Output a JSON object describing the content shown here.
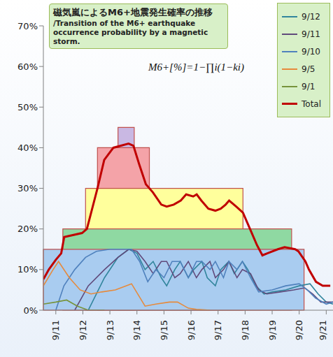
{
  "chart_data": {
    "type": "line",
    "title": "磁気嵐によるM6+地震発生確率の推移",
    "subtitle": "/Transition of the M6+ earthquake occurrence probability by a magnetic storm.",
    "annotations": [
      "M6+[%]=1−∏i(1−ki)"
    ],
    "xlim": [
      10.54,
      21.25
    ],
    "xticks": [
      {
        "value": 11,
        "label": "9/11"
      },
      {
        "value": 12,
        "label": "9/12"
      },
      {
        "value": 13,
        "label": "9/13"
      },
      {
        "value": 14,
        "label": "9/14"
      },
      {
        "value": 15,
        "label": "9/15"
      },
      {
        "value": 16,
        "label": "9/16"
      },
      {
        "value": 17,
        "label": "9/17"
      },
      {
        "value": 18,
        "label": "9/18"
      },
      {
        "value": 19,
        "label": "9/19"
      },
      {
        "value": 20,
        "label": "9/20"
      },
      {
        "value": 21,
        "label": "9/21"
      }
    ],
    "ylim": [
      0,
      70
    ],
    "yticks": [
      {
        "value": 0,
        "label": "0%"
      },
      {
        "value": 10,
        "label": "10%"
      },
      {
        "value": 20,
        "label": "20%"
      },
      {
        "value": 30,
        "label": "30%"
      },
      {
        "value": 40,
        "label": "40%"
      },
      {
        "value": 50,
        "label": "50%"
      },
      {
        "value": 60,
        "label": "60%"
      },
      {
        "value": 70,
        "label": "70%"
      }
    ],
    "grid": false,
    "legend": "top-right",
    "bands": [
      {
        "x": [
          13.3,
          13.9
        ],
        "value": 45,
        "color": "#c9b8e3"
      },
      {
        "x": [
          12.54,
          14.46
        ],
        "value": 40,
        "color": "#f4a3a8"
      },
      {
        "x": [
          12.1,
          17.92
        ],
        "value": 30,
        "color": "#ffff9c"
      },
      {
        "x": [
          11.26,
          19.72
        ],
        "value": 20,
        "color": "#8fd9a2"
      },
      {
        "x": [
          10.54,
          20.18
        ],
        "value": 15,
        "color": "#a9ccf0"
      }
    ],
    "series": [
      {
        "name": "9/12",
        "color": "#31859c",
        "x": [
          12.2,
          12.8,
          13.3,
          13.7,
          14.0,
          14.3,
          14.6,
          14.9,
          15.1,
          15.4,
          15.6,
          15.9,
          16.1,
          16.4,
          16.6,
          16.9,
          17.1,
          17.4,
          17.6,
          17.9,
          18.1,
          18.4,
          18.7,
          19.0,
          19.5,
          20.0,
          20.4,
          20.7,
          21.0,
          21.25
        ],
        "values": [
          0,
          8,
          13,
          15,
          14,
          10,
          12,
          8,
          6,
          10,
          12,
          8,
          10,
          12,
          8,
          6,
          10,
          12,
          9,
          12,
          10,
          6,
          4,
          4.5,
          5,
          6,
          6.5,
          4,
          2,
          1.5
        ]
      },
      {
        "name": "9/11",
        "color": "#604a7b",
        "x": [
          11.7,
          12.2,
          12.8,
          13.3,
          13.7,
          14.0,
          14.3,
          14.6,
          14.9,
          15.1,
          15.4,
          15.6,
          15.9,
          16.2,
          16.4,
          16.7,
          16.9,
          17.2,
          17.4,
          17.7,
          17.9,
          18.2,
          18.5,
          18.8,
          19.3,
          19.8,
          20.2,
          20.5,
          20.8,
          21.25
        ],
        "values": [
          0,
          6,
          10,
          13,
          15,
          14.5,
          12,
          9,
          12,
          12,
          8,
          9,
          12,
          8,
          10,
          12,
          8,
          10,
          12,
          8,
          10,
          9,
          5,
          4,
          4.5,
          5,
          5.5,
          4,
          2,
          2
        ]
      },
      {
        "name": "9/10",
        "color": "#4f81bd",
        "x": [
          11.0,
          11.3,
          11.7,
          12.1,
          12.5,
          13.0,
          13.5,
          13.8,
          14.1,
          14.4,
          14.7,
          15.0,
          15.3,
          15.6,
          15.9,
          16.2,
          16.4,
          16.7,
          16.9,
          17.2,
          17.4,
          17.7,
          17.9,
          18.2,
          18.5,
          19.0,
          19.5,
          20.0,
          20.3,
          20.6,
          21.0,
          21.25
        ],
        "values": [
          0,
          6,
          10,
          13,
          14.5,
          15,
          15,
          15,
          12,
          7,
          10,
          8,
          12,
          12,
          8,
          12,
          12,
          10,
          12,
          8,
          12,
          10,
          12,
          8,
          4.5,
          5,
          6,
          6.5,
          5,
          3,
          1.5,
          2
        ]
      },
      {
        "name": "9/5",
        "color": "#e68a3c",
        "x": [
          10.54,
          10.9,
          11.1,
          11.5,
          11.9,
          12.3,
          12.7,
          13.2,
          13.8,
          14.3,
          14.7,
          15.2,
          15.5,
          15.9,
          16.2,
          16.7
        ],
        "values": [
          6,
          10,
          12,
          8,
          5,
          4,
          4.5,
          5,
          6.5,
          1,
          1.5,
          2,
          2,
          0.5,
          0.2,
          0
        ]
      },
      {
        "name": "9/1",
        "color": "#77933c",
        "x": [
          10.54,
          11.0,
          11.4,
          11.8,
          12.2,
          12.8
        ],
        "values": [
          1.5,
          2,
          2.5,
          1,
          0,
          0
        ]
      },
      {
        "name": "Total",
        "color": "#c00000",
        "x": [
          10.54,
          10.74,
          11.0,
          11.2,
          11.31,
          11.97,
          12.15,
          12.54,
          12.79,
          13.13,
          13.69,
          13.87,
          14.08,
          14.33,
          14.59,
          14.9,
          15.1,
          15.36,
          15.62,
          15.82,
          16.08,
          16.21,
          16.38,
          16.64,
          16.9,
          17.1,
          17.28,
          17.41,
          17.67,
          17.92,
          18.18,
          18.44,
          18.64,
          18.82,
          19.21,
          19.46,
          19.85,
          19.97,
          20.23,
          20.36,
          20.62,
          20.87,
          21.15
        ],
        "values": [
          7.6,
          10,
          12.4,
          14,
          18,
          19,
          20,
          30,
          37,
          40,
          41,
          40.5,
          36,
          31,
          29,
          26,
          25.5,
          26,
          27,
          28.5,
          28,
          28.5,
          27,
          25,
          24.5,
          25,
          26,
          27,
          25.5,
          24,
          20,
          16,
          13.5,
          14,
          15,
          15.5,
          15,
          14.5,
          12,
          10,
          7,
          6,
          6
        ]
      }
    ]
  }
}
